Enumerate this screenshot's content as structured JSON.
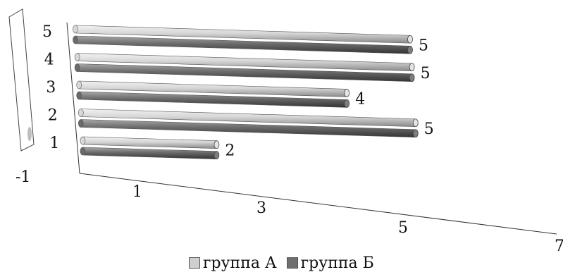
{
  "chart_data": {
    "type": "bar",
    "orientation": "horizontal",
    "style": "3d-cylinder",
    "categories": [
      "1",
      "2",
      "3",
      "4",
      "5"
    ],
    "series": [
      {
        "name": "группа А",
        "values": [
          2,
          5,
          4,
          5,
          5
        ],
        "color": "#cfcfcf"
      },
      {
        "name": "группа Б",
        "values": [
          2,
          5,
          4,
          5,
          5
        ],
        "color": "#6f6f6f"
      }
    ],
    "data_labels": [
      "2",
      "5",
      "4",
      "5",
      "5"
    ],
    "value_axis_ticks": [
      "-1",
      "1",
      "3",
      "5",
      "7"
    ],
    "value_axis_range": [
      -1,
      7
    ],
    "grid": false,
    "legend_position": "bottom"
  }
}
